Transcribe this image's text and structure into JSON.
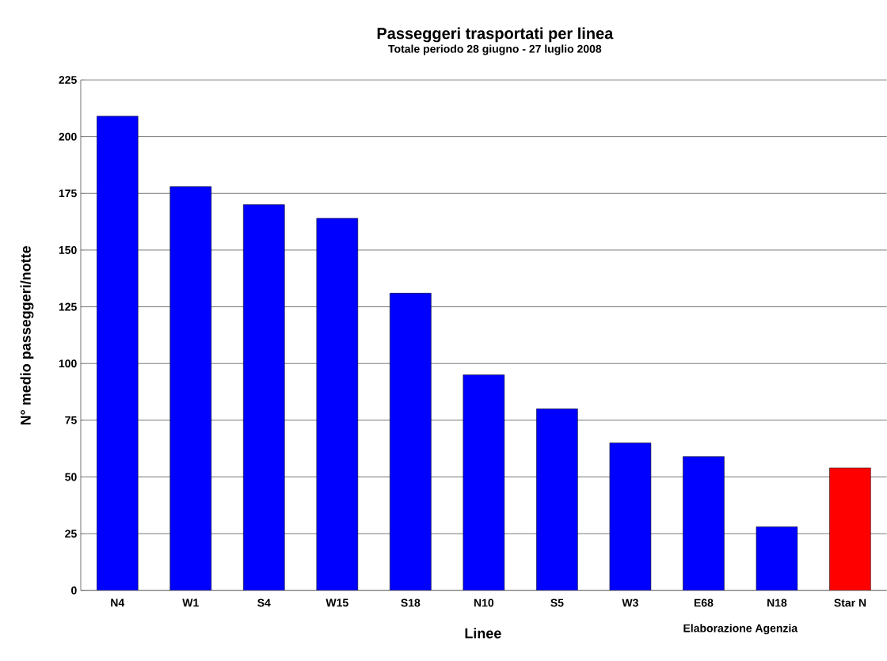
{
  "chart_data": {
    "type": "bar",
    "title": "Passeggeri trasportati per linea",
    "subtitle": "Totale periodo 28 giugno - 27 luglio 2008",
    "xlabel": "Linee",
    "ylabel": "N° medio passeggeri/notte",
    "annotations": [
      "Elaborazione Agenzia"
    ],
    "categories": [
      "N4",
      "W1",
      "S4",
      "W15",
      "S18",
      "N10",
      "S5",
      "W3",
      "E68",
      "N18",
      "Star N"
    ],
    "series": [
      {
        "color": "#0000ff",
        "values": [
          209,
          178,
          170,
          164,
          131,
          95,
          80,
          65,
          59,
          28,
          null
        ]
      },
      {
        "color": "#ff0000",
        "values": [
          null,
          null,
          null,
          null,
          null,
          null,
          null,
          null,
          null,
          null,
          54
        ]
      }
    ],
    "ylim": [
      0,
      225
    ],
    "yticks": [
      0,
      25,
      50,
      75,
      100,
      125,
      150,
      175,
      200,
      225
    ],
    "grid": "y"
  }
}
